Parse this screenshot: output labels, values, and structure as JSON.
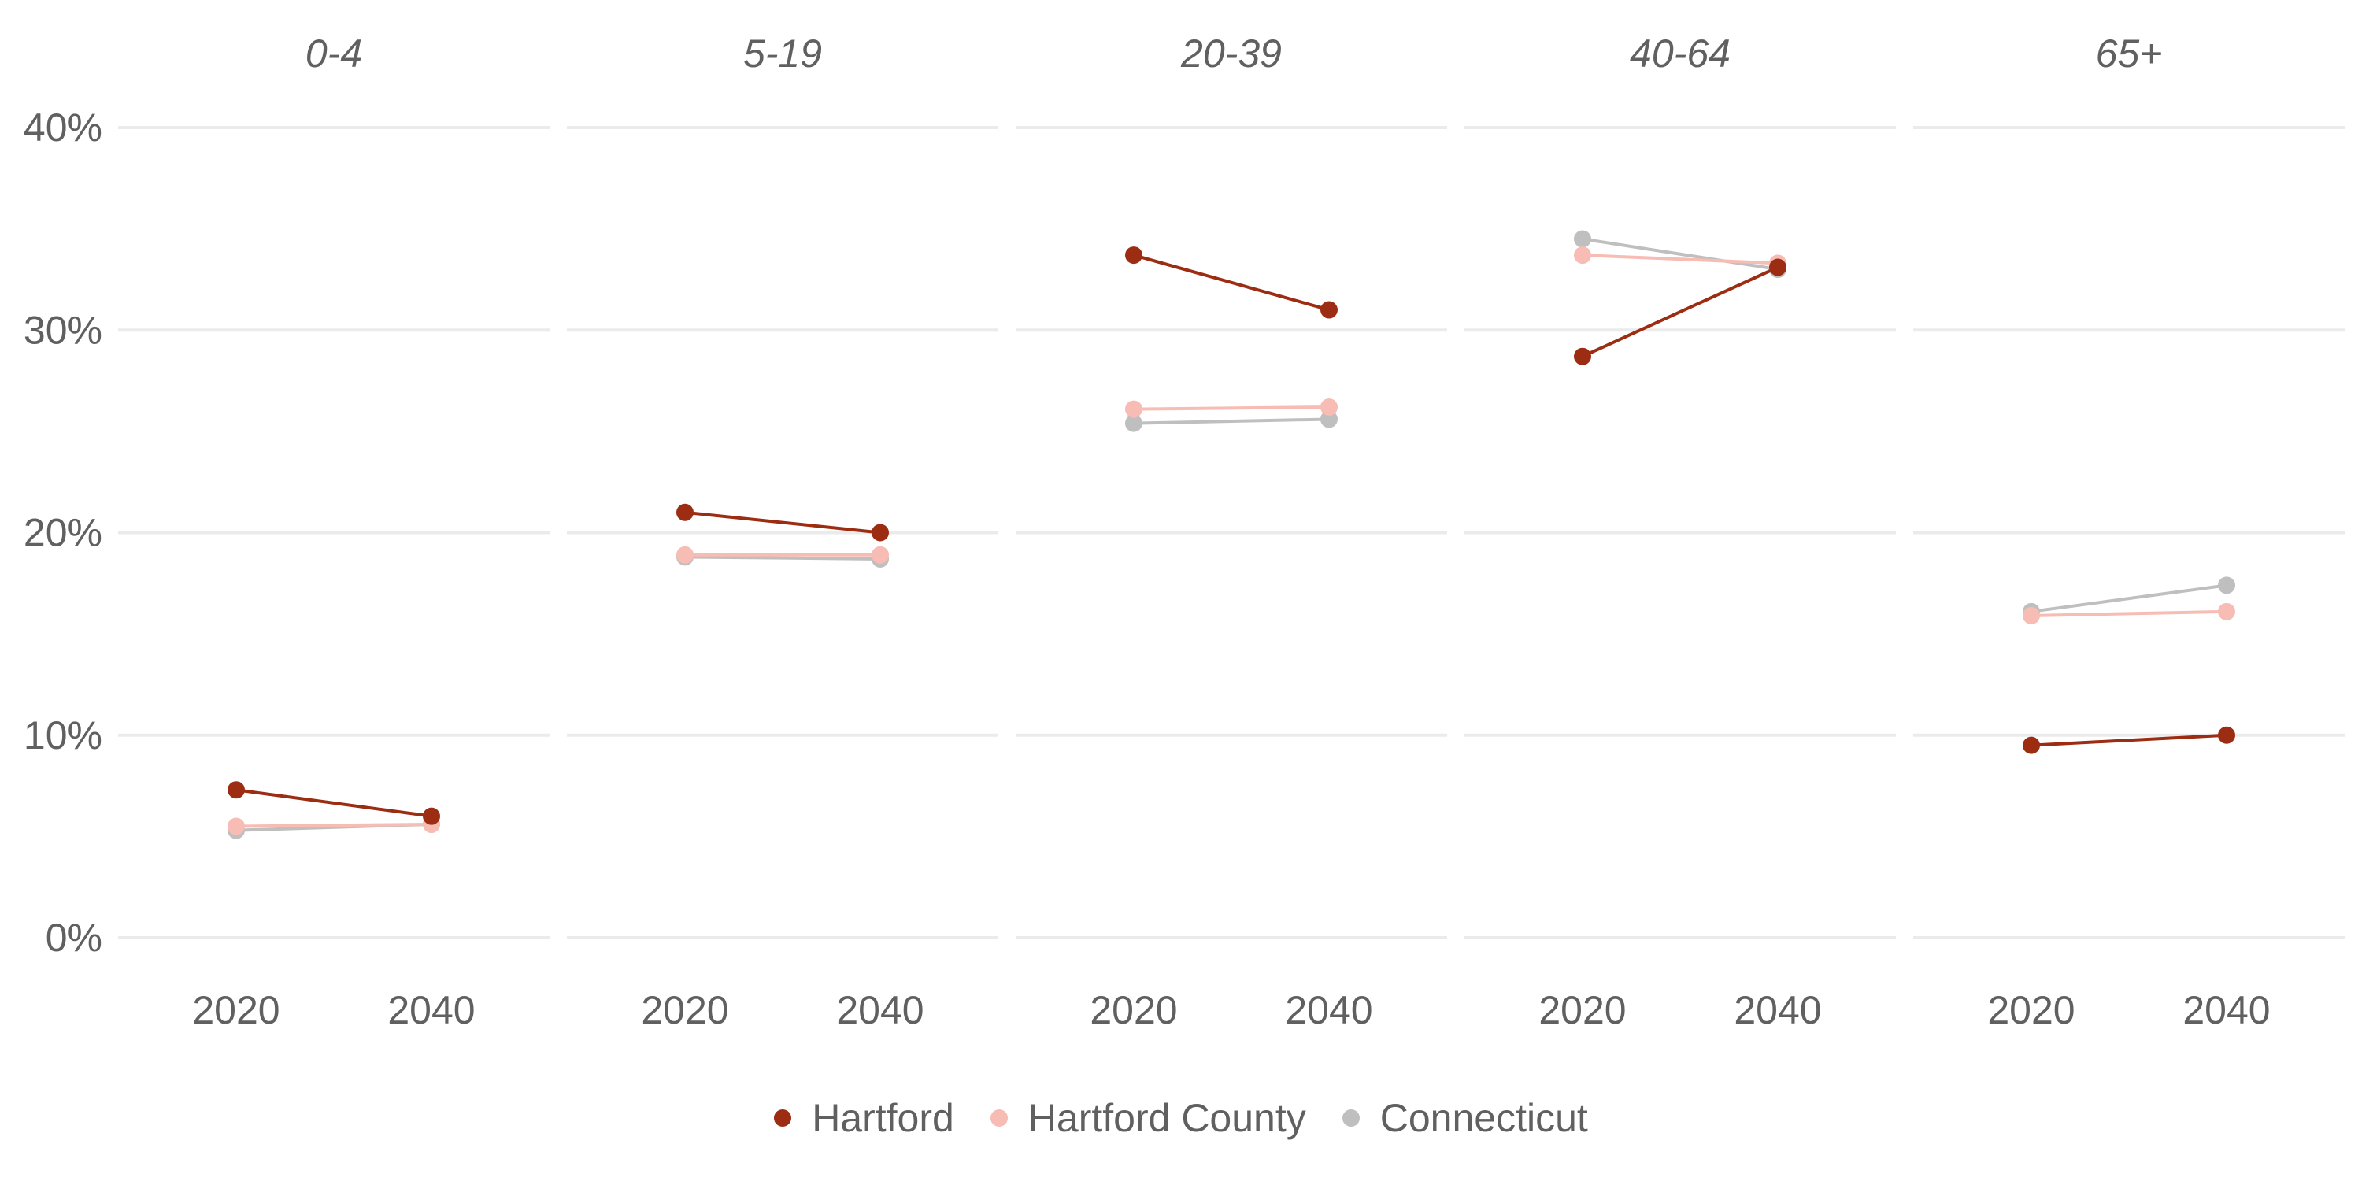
{
  "chart_data": {
    "type": "line",
    "facets": [
      "0-4",
      "5-19",
      "20-39",
      "40-64",
      "65+"
    ],
    "x": [
      "2020",
      "2040"
    ],
    "y_ticks": [
      "0%",
      "10%",
      "20%",
      "30%",
      "40%"
    ],
    "ylim": [
      0,
      40
    ],
    "y_unit": "%",
    "grid": true,
    "legend_position": "bottom",
    "series": [
      {
        "name": "Hartford",
        "color": "#9c2c12",
        "values": [
          [
            7.3,
            6.0
          ],
          [
            21.0,
            20.0
          ],
          [
            33.7,
            31.0
          ],
          [
            28.7,
            33.1
          ],
          [
            9.5,
            10.0
          ]
        ]
      },
      {
        "name": "Hartford County",
        "color": "#f7bcb4",
        "values": [
          [
            5.5,
            5.6
          ],
          [
            18.9,
            18.9
          ],
          [
            26.1,
            26.2
          ],
          [
            33.7,
            33.3
          ],
          [
            15.9,
            16.1
          ]
        ]
      },
      {
        "name": "Connecticut",
        "color": "#bfbfbf",
        "values": [
          [
            5.3,
            5.6
          ],
          [
            18.8,
            18.7
          ],
          [
            25.4,
            25.6
          ],
          [
            34.5,
            33.0
          ],
          [
            16.1,
            17.4
          ]
        ]
      }
    ]
  }
}
